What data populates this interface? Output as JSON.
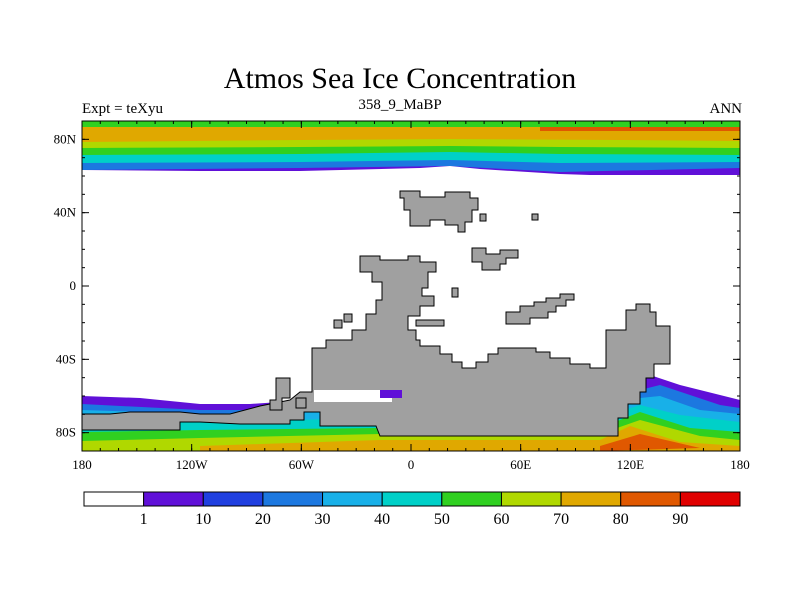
{
  "header": {
    "title": "Atmos Sea Ice Concentration",
    "left": "Expt = teXyu",
    "center": "358_9_MaBP",
    "right": "ANN"
  },
  "map": {
    "lon_range": [
      -180,
      180
    ],
    "lat_range": [
      -90,
      90
    ],
    "x_ticks": [
      {
        "value": -180,
        "label": "180"
      },
      {
        "value": -120,
        "label": "120W"
      },
      {
        "value": -60,
        "label": "60W"
      },
      {
        "value": 0,
        "label": "0"
      },
      {
        "value": 60,
        "label": "60E"
      },
      {
        "value": 120,
        "label": "120E"
      },
      {
        "value": 180,
        "label": "180"
      }
    ],
    "y_ticks": [
      {
        "value": 80,
        "label": "80N"
      },
      {
        "value": 40,
        "label": "40N"
      },
      {
        "value": 0,
        "label": "0"
      },
      {
        "value": -40,
        "label": "40S"
      },
      {
        "value": -80,
        "label": "80S"
      }
    ],
    "land_color": "#a0a0a0",
    "ocean_color": "#ffffff"
  },
  "colorbar": {
    "colors": [
      "#ffffff",
      "#6010d8",
      "#2040e0",
      "#1c78e0",
      "#18b0e8",
      "#00d0c8",
      "#30d020",
      "#b0d800",
      "#e0a800",
      "#e05800",
      "#e00000"
    ],
    "labels": [
      "1",
      "10",
      "20",
      "30",
      "40",
      "50",
      "60",
      "70",
      "80",
      "90"
    ]
  }
}
